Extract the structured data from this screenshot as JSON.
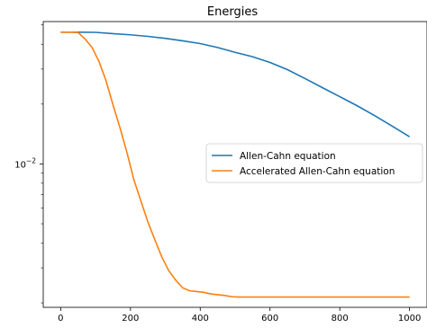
{
  "chart_data": {
    "type": "line",
    "title": "Energies",
    "xlabel": "",
    "ylabel": "",
    "xlim": [
      -50,
      1050
    ],
    "ylim": [
      0.0019,
      0.052
    ],
    "yscale": "log",
    "grid": false,
    "legend_position": "center-right",
    "x_ticks": [
      0,
      200,
      400,
      600,
      800,
      1000
    ],
    "x_tick_labels": [
      "0",
      "200",
      "400",
      "600",
      "800",
      "1000"
    ],
    "y_tick_label": {
      "base": "10",
      "exponent": "−2",
      "value": 0.01
    },
    "series": [
      {
        "name": "Allen-Cahn equation",
        "color": "#1f77b4",
        "x": [
          0,
          50,
          100,
          150,
          200,
          250,
          300,
          350,
          400,
          450,
          500,
          550,
          600,
          650,
          700,
          750,
          800,
          850,
          900,
          950,
          1000
        ],
        "y": [
          0.046,
          0.046,
          0.0459,
          0.0452,
          0.0446,
          0.0438,
          0.0428,
          0.0416,
          0.0403,
          0.0385,
          0.0364,
          0.0346,
          0.0324,
          0.0298,
          0.0269,
          0.0242,
          0.0218,
          0.0196,
          0.0175,
          0.0155,
          0.0137
        ]
      },
      {
        "name": "Accelerated Allen-Cahn equation",
        "color": "#ff7f0e",
        "x": [
          0,
          30,
          50,
          70,
          90,
          110,
          130,
          150,
          170,
          190,
          210,
          230,
          250,
          270,
          290,
          310,
          330,
          350,
          370,
          390,
          410,
          430,
          450,
          470,
          490,
          510,
          600,
          700,
          800,
          900,
          1000
        ],
        "y": [
          0.046,
          0.046,
          0.0458,
          0.0425,
          0.0385,
          0.0327,
          0.0262,
          0.0198,
          0.0152,
          0.0114,
          0.0083,
          0.0065,
          0.0051,
          0.00415,
          0.0034,
          0.0029,
          0.0026,
          0.00238,
          0.0023,
          0.00228,
          0.00226,
          0.00222,
          0.0022,
          0.00218,
          0.00215,
          0.00214,
          0.00214,
          0.00214,
          0.00214,
          0.00214,
          0.00214
        ]
      }
    ]
  }
}
